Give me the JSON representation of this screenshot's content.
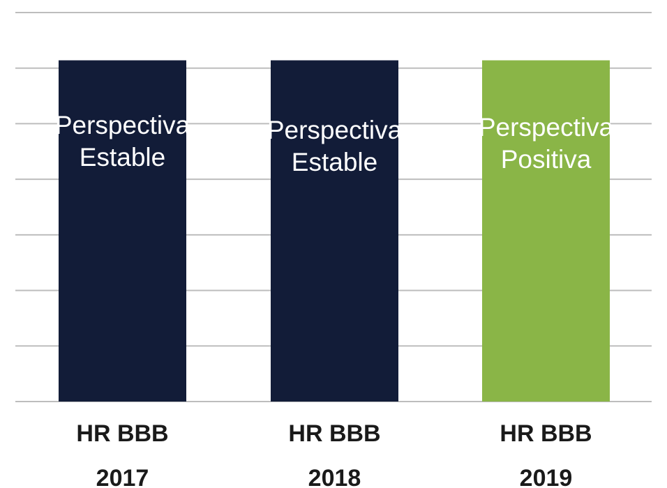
{
  "chart_data": {
    "type": "bar",
    "categories": [
      {
        "line1": "HR BBB",
        "line2": "2017"
      },
      {
        "line1": "HR BBB",
        "line2": "2018"
      },
      {
        "line1": "HR BBB",
        "line2": "2019"
      }
    ],
    "bars": [
      {
        "value": 1,
        "label_lines": [
          "Perspectiva",
          "Estable"
        ],
        "color": "#121c38"
      },
      {
        "value": 1,
        "label_lines": [
          "Perspectiva",
          "Estable"
        ],
        "color": "#121c38"
      },
      {
        "value": 1,
        "label_lines": [
          "Perspectiva",
          "Positiva"
        ],
        "color": "#8ab547"
      }
    ],
    "ylim": [
      0,
      1.14
    ],
    "grid_lines": 8,
    "title": "",
    "xlabel": "",
    "ylabel": "",
    "legend": "none"
  }
}
